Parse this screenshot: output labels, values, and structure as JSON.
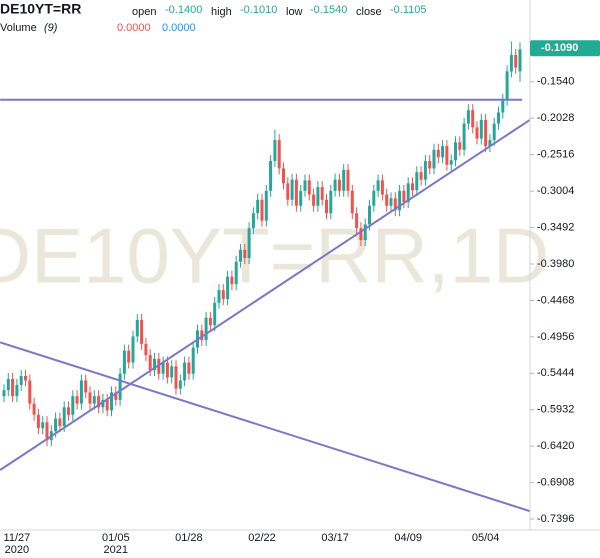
{
  "chart_data": {
    "type": "candlestick",
    "symbol": "DE10YT=RR",
    "watermark": "DE10YT=RR,1D",
    "ohlc_legend": {
      "open_label": "open",
      "open": "-0.1400",
      "high_label": "high",
      "high": "-0.1010",
      "low_label": "low",
      "low": "-0.1540",
      "close_label": "close",
      "close": "-0.1105"
    },
    "volume_legend": {
      "label": "Volume",
      "length": "(9)",
      "up": "0.0000",
      "down": "0.0000"
    },
    "last_price": {
      "value": -0.109,
      "label": "-0.1090"
    },
    "up_color": "#26a69a",
    "down_color": "#ef5350",
    "line_color": "#7a78c6",
    "ylim": [
      -0.7543,
      -0.0444
    ],
    "yticks": [
      {
        "value": -0.154,
        "label": "-0.1540"
      },
      {
        "value": -0.2028,
        "label": "-0.2028"
      },
      {
        "value": -0.2516,
        "label": "-0.2516"
      },
      {
        "value": -0.3004,
        "label": "-0.3004"
      },
      {
        "value": -0.3492,
        "label": "-0.3492"
      },
      {
        "value": -0.398,
        "label": "-0.3980"
      },
      {
        "value": -0.4468,
        "label": "-0.4468"
      },
      {
        "value": -0.4956,
        "label": "-0.4956"
      },
      {
        "value": -0.5444,
        "label": "-0.5444"
      },
      {
        "value": -0.5932,
        "label": "-0.5932"
      },
      {
        "value": -0.642,
        "label": "-0.6420"
      },
      {
        "value": -0.6908,
        "label": "-0.6908"
      },
      {
        "value": -0.7396,
        "label": "-0.7396"
      }
    ],
    "categories": [
      null,
      null,
      null,
      "11/27",
      null,
      null,
      null,
      null,
      null,
      null,
      null,
      null,
      null,
      null,
      null,
      null,
      null,
      null,
      null,
      null,
      null,
      null,
      null,
      null,
      null,
      null,
      "01/05",
      null,
      null,
      null,
      null,
      null,
      null,
      null,
      null,
      null,
      null,
      null,
      null,
      null,
      null,
      null,
      null,
      "01/28",
      null,
      null,
      null,
      null,
      null,
      null,
      null,
      null,
      null,
      null,
      null,
      null,
      null,
      null,
      null,
      null,
      "02/22",
      null,
      null,
      null,
      null,
      null,
      null,
      null,
      null,
      null,
      null,
      null,
      null,
      null,
      null,
      null,
      null,
      "03/17",
      null,
      null,
      null,
      null,
      null,
      null,
      null,
      null,
      null,
      null,
      null,
      null,
      null,
      null,
      null,
      null,
      "04/09",
      null,
      null,
      null,
      null,
      null,
      null,
      null,
      null,
      null,
      null,
      null,
      null,
      null,
      null,
      null,
      null,
      null,
      "05/04",
      null,
      null,
      null,
      null,
      null,
      null,
      null,
      null
    ],
    "category_years": [
      null,
      null,
      null,
      "2020",
      null,
      null,
      null,
      null,
      null,
      null,
      null,
      null,
      null,
      null,
      null,
      null,
      null,
      null,
      null,
      null,
      null,
      null,
      null,
      null,
      null,
      null,
      "2021",
      null,
      null,
      null,
      null,
      null,
      null,
      null,
      null,
      null,
      null,
      null,
      null,
      null,
      null,
      null,
      null,
      null,
      null,
      null,
      null,
      null,
      null,
      null,
      null,
      null,
      null,
      null,
      null,
      null,
      null,
      null,
      null,
      null,
      null,
      null,
      null,
      null,
      null,
      null,
      null,
      null,
      null,
      null,
      null,
      null,
      null,
      null,
      null,
      null,
      null,
      null,
      null,
      null,
      null,
      null,
      null,
      null,
      null,
      null,
      null,
      null,
      null,
      null,
      null,
      null,
      null,
      null,
      null,
      null,
      null,
      null,
      null,
      null,
      null,
      null,
      null,
      null,
      null,
      null,
      null,
      null,
      null,
      null,
      null,
      null,
      null,
      null,
      null,
      null,
      null,
      null,
      null,
      null,
      null
    ],
    "candles": [
      [
        -0.575,
        -0.559,
        -0.583,
        -0.567
      ],
      [
        -0.567,
        -0.544,
        -0.575,
        -0.552
      ],
      [
        -0.552,
        -0.544,
        -0.583,
        -0.575
      ],
      [
        -0.575,
        -0.552,
        -0.583,
        -0.56
      ],
      [
        -0.56,
        -0.54,
        -0.568,
        -0.548
      ],
      [
        -0.548,
        -0.54,
        -0.562,
        -0.554
      ],
      [
        -0.554,
        -0.546,
        -0.593,
        -0.585
      ],
      [
        -0.585,
        -0.577,
        -0.608,
        -0.6
      ],
      [
        -0.6,
        -0.592,
        -0.626,
        -0.618
      ],
      [
        -0.618,
        -0.602,
        -0.626,
        -0.61
      ],
      [
        -0.61,
        -0.602,
        -0.642,
        -0.634
      ],
      [
        -0.634,
        -0.614,
        -0.642,
        -0.622
      ],
      [
        -0.622,
        -0.597,
        -0.63,
        -0.605
      ],
      [
        -0.605,
        -0.597,
        -0.623,
        -0.615
      ],
      [
        -0.615,
        -0.582,
        -0.623,
        -0.59
      ],
      [
        -0.59,
        -0.582,
        -0.608,
        -0.6
      ],
      [
        -0.6,
        -0.567,
        -0.608,
        -0.575
      ],
      [
        -0.575,
        -0.567,
        -0.593,
        -0.585
      ],
      [
        -0.585,
        -0.546,
        -0.593,
        -0.554
      ],
      [
        -0.554,
        -0.546,
        -0.578,
        -0.57
      ],
      [
        -0.57,
        -0.562,
        -0.593,
        -0.585
      ],
      [
        -0.585,
        -0.567,
        -0.593,
        -0.575
      ],
      [
        -0.575,
        -0.567,
        -0.598,
        -0.59
      ],
      [
        -0.59,
        -0.572,
        -0.598,
        -0.58
      ],
      [
        -0.58,
        -0.572,
        -0.602,
        -0.594
      ],
      [
        -0.594,
        -0.562,
        -0.602,
        -0.57
      ],
      [
        -0.57,
        -0.562,
        -0.588,
        -0.58
      ],
      [
        -0.58,
        -0.537,
        -0.588,
        -0.545
      ],
      [
        -0.545,
        -0.506,
        -0.553,
        -0.514
      ],
      [
        -0.514,
        -0.506,
        -0.538,
        -0.53
      ],
      [
        -0.53,
        -0.487,
        -0.538,
        -0.495
      ],
      [
        -0.495,
        -0.465,
        -0.503,
        -0.473
      ],
      [
        -0.473,
        -0.465,
        -0.513,
        -0.505
      ],
      [
        -0.505,
        -0.497,
        -0.528,
        -0.52
      ],
      [
        -0.52,
        -0.512,
        -0.548,
        -0.54
      ],
      [
        -0.54,
        -0.517,
        -0.548,
        -0.525
      ],
      [
        -0.525,
        -0.517,
        -0.553,
        -0.545
      ],
      [
        -0.545,
        -0.522,
        -0.553,
        -0.53
      ],
      [
        -0.53,
        -0.522,
        -0.558,
        -0.55
      ],
      [
        -0.55,
        -0.527,
        -0.558,
        -0.535
      ],
      [
        -0.535,
        -0.527,
        -0.573,
        -0.565
      ],
      [
        -0.565,
        -0.546,
        -0.573,
        -0.554
      ],
      [
        -0.554,
        -0.522,
        -0.562,
        -0.53
      ],
      [
        -0.53,
        -0.522,
        -0.553,
        -0.545
      ],
      [
        -0.545,
        -0.502,
        -0.553,
        -0.51
      ],
      [
        -0.51,
        -0.479,
        -0.518,
        -0.487
      ],
      [
        -0.487,
        -0.479,
        -0.508,
        -0.5
      ],
      [
        -0.5,
        -0.462,
        -0.508,
        -0.47
      ],
      [
        -0.47,
        -0.462,
        -0.488,
        -0.48
      ],
      [
        -0.48,
        -0.442,
        -0.488,
        -0.45
      ],
      [
        -0.45,
        -0.425,
        -0.458,
        -0.433
      ],
      [
        -0.433,
        -0.425,
        -0.453,
        -0.445
      ],
      [
        -0.445,
        -0.407,
        -0.453,
        -0.415
      ],
      [
        -0.415,
        -0.407,
        -0.433,
        -0.425
      ],
      [
        -0.425,
        -0.387,
        -0.433,
        -0.395
      ],
      [
        -0.395,
        -0.371,
        -0.403,
        -0.379
      ],
      [
        -0.379,
        -0.371,
        -0.398,
        -0.39
      ],
      [
        -0.39,
        -0.342,
        -0.398,
        -0.35
      ],
      [
        -0.35,
        -0.322,
        -0.358,
        -0.33
      ],
      [
        -0.33,
        -0.304,
        -0.338,
        -0.312
      ],
      [
        -0.312,
        -0.304,
        -0.348,
        -0.34
      ],
      [
        -0.34,
        -0.292,
        -0.348,
        -0.3
      ],
      [
        -0.3,
        -0.252,
        -0.308,
        -0.26
      ],
      [
        -0.26,
        -0.218,
        -0.268,
        -0.232
      ],
      [
        -0.232,
        -0.224,
        -0.278,
        -0.27
      ],
      [
        -0.27,
        -0.262,
        -0.298,
        -0.29
      ],
      [
        -0.29,
        -0.282,
        -0.32,
        -0.312
      ],
      [
        -0.312,
        -0.277,
        -0.32,
        -0.285
      ],
      [
        -0.285,
        -0.277,
        -0.328,
        -0.32
      ],
      [
        -0.32,
        -0.292,
        -0.328,
        -0.3
      ],
      [
        -0.3,
        -0.278,
        -0.308,
        -0.286
      ],
      [
        -0.286,
        -0.278,
        -0.313,
        -0.305
      ],
      [
        -0.305,
        -0.297,
        -0.328,
        -0.32
      ],
      [
        -0.32,
        -0.287,
        -0.328,
        -0.295
      ],
      [
        -0.295,
        -0.287,
        -0.32,
        -0.312
      ],
      [
        -0.312,
        -0.304,
        -0.338,
        -0.33
      ],
      [
        -0.33,
        -0.292,
        -0.338,
        -0.3
      ],
      [
        -0.3,
        -0.277,
        -0.308,
        -0.285
      ],
      [
        -0.285,
        -0.277,
        -0.308,
        -0.3
      ],
      [
        -0.3,
        -0.264,
        -0.308,
        -0.272
      ],
      [
        -0.272,
        -0.264,
        -0.308,
        -0.3
      ],
      [
        -0.3,
        -0.292,
        -0.338,
        -0.33
      ],
      [
        -0.33,
        -0.322,
        -0.358,
        -0.35
      ],
      [
        -0.35,
        -0.342,
        -0.374,
        -0.366
      ],
      [
        -0.366,
        -0.337,
        -0.374,
        -0.345
      ],
      [
        -0.345,
        -0.312,
        -0.353,
        -0.32
      ],
      [
        -0.32,
        -0.292,
        -0.328,
        -0.3
      ],
      [
        -0.3,
        -0.278,
        -0.308,
        -0.286
      ],
      [
        -0.286,
        -0.278,
        -0.313,
        -0.305
      ],
      [
        -0.305,
        -0.297,
        -0.328,
        -0.32
      ],
      [
        -0.32,
        -0.302,
        -0.328,
        -0.31
      ],
      [
        -0.31,
        -0.302,
        -0.334,
        -0.326
      ],
      [
        -0.326,
        -0.292,
        -0.334,
        -0.3
      ],
      [
        -0.3,
        -0.292,
        -0.323,
        -0.315
      ],
      [
        -0.315,
        -0.282,
        -0.323,
        -0.29
      ],
      [
        -0.29,
        -0.282,
        -0.307,
        -0.299
      ],
      [
        -0.299,
        -0.267,
        -0.307,
        -0.275
      ],
      [
        -0.275,
        -0.267,
        -0.293,
        -0.285
      ],
      [
        -0.285,
        -0.252,
        -0.293,
        -0.26
      ],
      [
        -0.26,
        -0.252,
        -0.278,
        -0.27
      ],
      [
        -0.27,
        -0.237,
        -0.278,
        -0.245
      ],
      [
        -0.245,
        -0.237,
        -0.263,
        -0.255
      ],
      [
        -0.255,
        -0.232,
        -0.263,
        -0.24
      ],
      [
        -0.24,
        -0.232,
        -0.273,
        -0.265
      ],
      [
        -0.265,
        -0.251,
        -0.273,
        -0.259
      ],
      [
        -0.259,
        -0.227,
        -0.267,
        -0.235
      ],
      [
        -0.235,
        -0.227,
        -0.253,
        -0.245
      ],
      [
        -0.245,
        -0.202,
        -0.253,
        -0.21
      ],
      [
        -0.21,
        -0.184,
        -0.218,
        -0.192
      ],
      [
        -0.192,
        -0.184,
        -0.223,
        -0.215
      ],
      [
        -0.215,
        -0.207,
        -0.238,
        -0.23
      ],
      [
        -0.23,
        -0.197,
        -0.238,
        -0.205
      ],
      [
        -0.205,
        -0.197,
        -0.248,
        -0.24
      ],
      [
        -0.24,
        -0.224,
        -0.248,
        -0.232
      ],
      [
        -0.232,
        -0.202,
        -0.24,
        -0.21
      ],
      [
        -0.21,
        -0.187,
        -0.218,
        -0.195
      ],
      [
        -0.195,
        -0.17,
        -0.203,
        -0.178
      ],
      [
        -0.178,
        -0.132,
        -0.186,
        -0.14
      ],
      [
        -0.14,
        -0.1,
        -0.148,
        -0.118
      ],
      [
        -0.118,
        -0.11,
        -0.143,
        -0.135
      ],
      [
        -0.14,
        -0.101,
        -0.154,
        -0.1105
      ]
    ],
    "lines": [
      {
        "x": [
          -0.9,
          120.5
        ],
        "y": [
          -0.178,
          -0.178
        ]
      },
      {
        "x": [
          -0.9,
          122.3
        ],
        "y": [
          -0.674,
          -0.205
        ]
      },
      {
        "x": [
          -0.9,
          122.3
        ],
        "y": [
          -0.503,
          -0.729
        ]
      }
    ]
  }
}
